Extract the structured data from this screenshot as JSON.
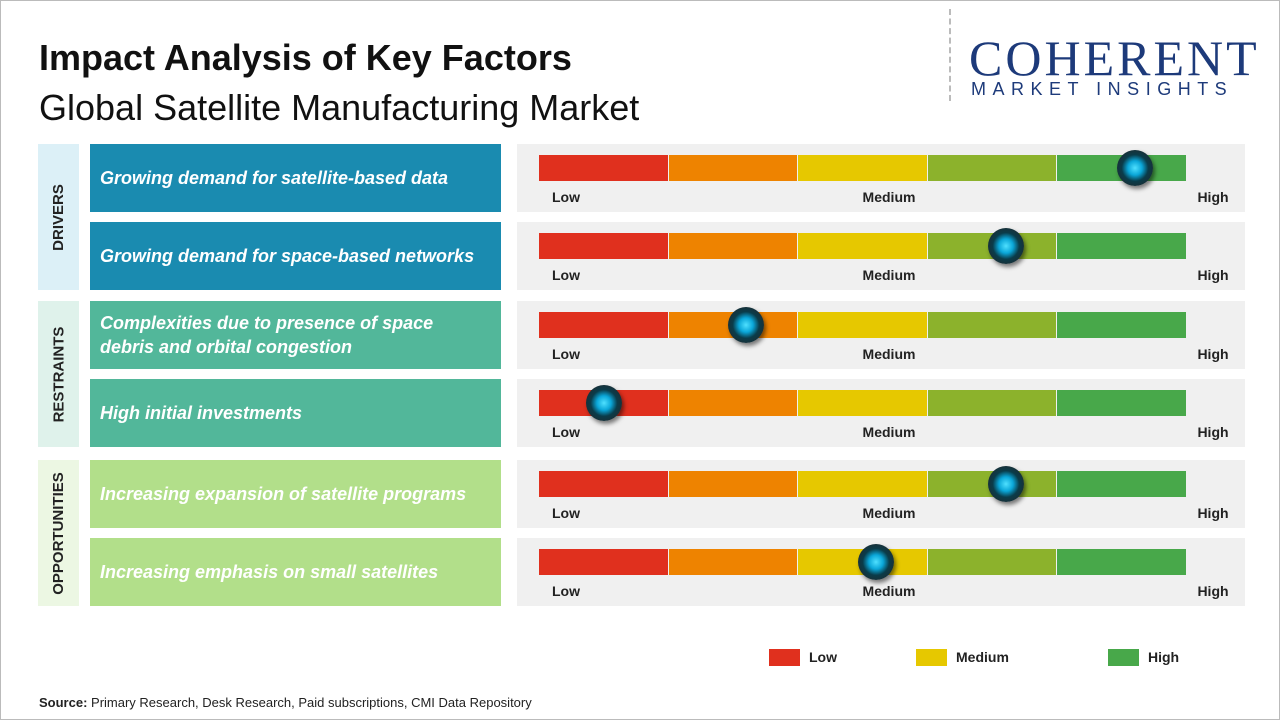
{
  "header": {
    "title": "Impact Analysis of Key Factors",
    "subtitle": "Global Satellite Manufacturing Market"
  },
  "logo": {
    "name": "COHERENT",
    "tagline": "MARKET INSIGHTS"
  },
  "scale": {
    "min": 0,
    "max": 5,
    "labels": [
      "Low",
      "Medium",
      "High"
    ],
    "colors": [
      "#e0301e",
      "#ee8300",
      "#e6c800",
      "#8cb22c",
      "#48a84a"
    ]
  },
  "groups": [
    {
      "label": "DRIVERS",
      "color": "#1a8bb0",
      "tint": "#dcf0f7",
      "factors": [
        {
          "text": "Growing demand for satellite-based data",
          "impact": 4.6
        },
        {
          "text": "Growing demand for space-based networks",
          "impact": 3.6
        }
      ]
    },
    {
      "label": "RESTRAINTS",
      "color": "#52b79a",
      "tint": "#dff2eb",
      "factors": [
        {
          "text": "Complexities due to presence of space debris and orbital congestion",
          "impact": 1.6
        },
        {
          "text": "High initial investments",
          "impact": 0.5
        }
      ]
    },
    {
      "label": "OPPORTUNITIES",
      "color": "#b2df8a",
      "tint": "#ecf7e3",
      "factors": [
        {
          "text": "Increasing expansion of satellite programs",
          "impact": 3.6
        },
        {
          "text": "Increasing emphasis on small satellites",
          "impact": 2.6
        }
      ]
    }
  ],
  "legend": [
    {
      "label": "Low",
      "color": "#e0301e"
    },
    {
      "label": "Medium",
      "color": "#e6c800"
    },
    {
      "label": "High",
      "color": "#48a84a"
    }
  ],
  "source": {
    "label": "Source:",
    "text": "Primary Research, Desk Research, Paid subscriptions, CMI Data Repository"
  }
}
